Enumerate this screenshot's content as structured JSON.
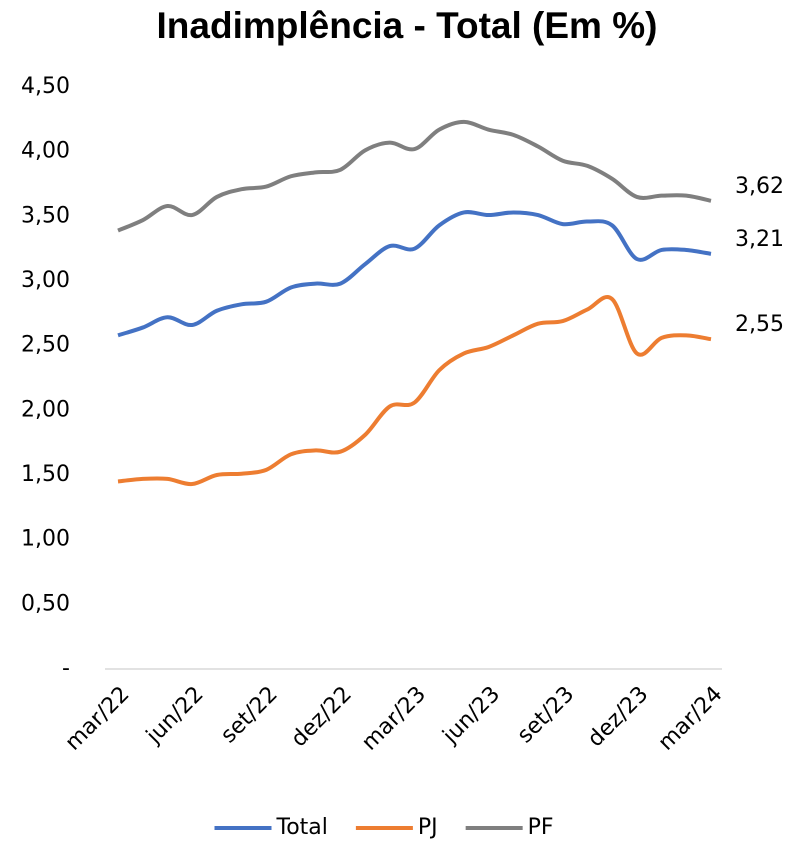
{
  "chart_data": {
    "type": "line",
    "title": "Inadimplência - Total (Em %)",
    "categories": [
      "mar/22",
      null,
      null,
      "jun/22",
      null,
      null,
      "set/22",
      null,
      null,
      "dez/22",
      null,
      null,
      "mar/23",
      null,
      null,
      "jun/23",
      null,
      null,
      "set/23",
      null,
      null,
      "dez/23",
      null,
      null,
      "mar/24"
    ],
    "series": [
      {
        "name": "Total",
        "color": "#4472c4",
        "values": [
          2.58,
          2.64,
          2.72,
          2.66,
          2.77,
          2.82,
          2.84,
          2.95,
          2.98,
          2.98,
          3.13,
          3.27,
          3.25,
          3.43,
          3.53,
          3.51,
          3.53,
          3.51,
          3.44,
          3.46,
          3.43,
          3.17,
          3.24,
          3.24,
          3.21
        ],
        "value_labels": [
          null,
          null,
          null,
          null,
          null,
          null,
          null,
          null,
          null,
          null,
          null,
          null,
          null,
          null,
          null,
          null,
          null,
          null,
          null,
          null,
          null,
          null,
          null,
          null,
          "3,21"
        ]
      },
      {
        "name": "PJ",
        "color": "#ed7d31",
        "values": [
          1.45,
          1.47,
          1.47,
          1.43,
          1.5,
          1.51,
          1.54,
          1.66,
          1.69,
          1.68,
          1.81,
          2.03,
          2.06,
          2.31,
          2.44,
          2.49,
          2.58,
          2.67,
          2.69,
          2.78,
          2.86,
          2.44,
          2.56,
          2.58,
          2.55
        ],
        "value_labels": [
          null,
          null,
          null,
          null,
          null,
          null,
          null,
          null,
          null,
          null,
          null,
          null,
          null,
          null,
          null,
          null,
          null,
          null,
          null,
          null,
          null,
          null,
          null,
          null,
          "2,55"
        ]
      },
      {
        "name": "PF",
        "color": "#7f7f7f",
        "values": [
          3.39,
          3.47,
          3.58,
          3.51,
          3.65,
          3.71,
          3.73,
          3.81,
          3.84,
          3.86,
          4.01,
          4.07,
          4.02,
          4.17,
          4.23,
          4.17,
          4.13,
          4.04,
          3.93,
          3.89,
          3.79,
          3.65,
          3.66,
          3.66,
          3.62
        ],
        "value_labels": [
          null,
          null,
          null,
          null,
          null,
          null,
          null,
          null,
          null,
          null,
          null,
          null,
          null,
          null,
          null,
          null,
          null,
          null,
          null,
          null,
          null,
          null,
          null,
          null,
          "3,62"
        ]
      }
    ],
    "ylim": [
      0,
      4.5
    ],
    "yticks": [
      {
        "value": 0,
        "label": "-"
      },
      {
        "value": 0.5,
        "label": "0,50"
      },
      {
        "value": 1,
        "label": "1,00"
      },
      {
        "value": 1.5,
        "label": "1,50"
      },
      {
        "value": 2,
        "label": "2,00"
      },
      {
        "value": 2.5,
        "label": "2,50"
      },
      {
        "value": 3,
        "label": "3,00"
      },
      {
        "value": 3.5,
        "label": "3,50"
      },
      {
        "value": 4,
        "label": "4,00"
      },
      {
        "value": 4.5,
        "label": "4,50"
      }
    ],
    "grid": false,
    "legend": "bottom"
  }
}
